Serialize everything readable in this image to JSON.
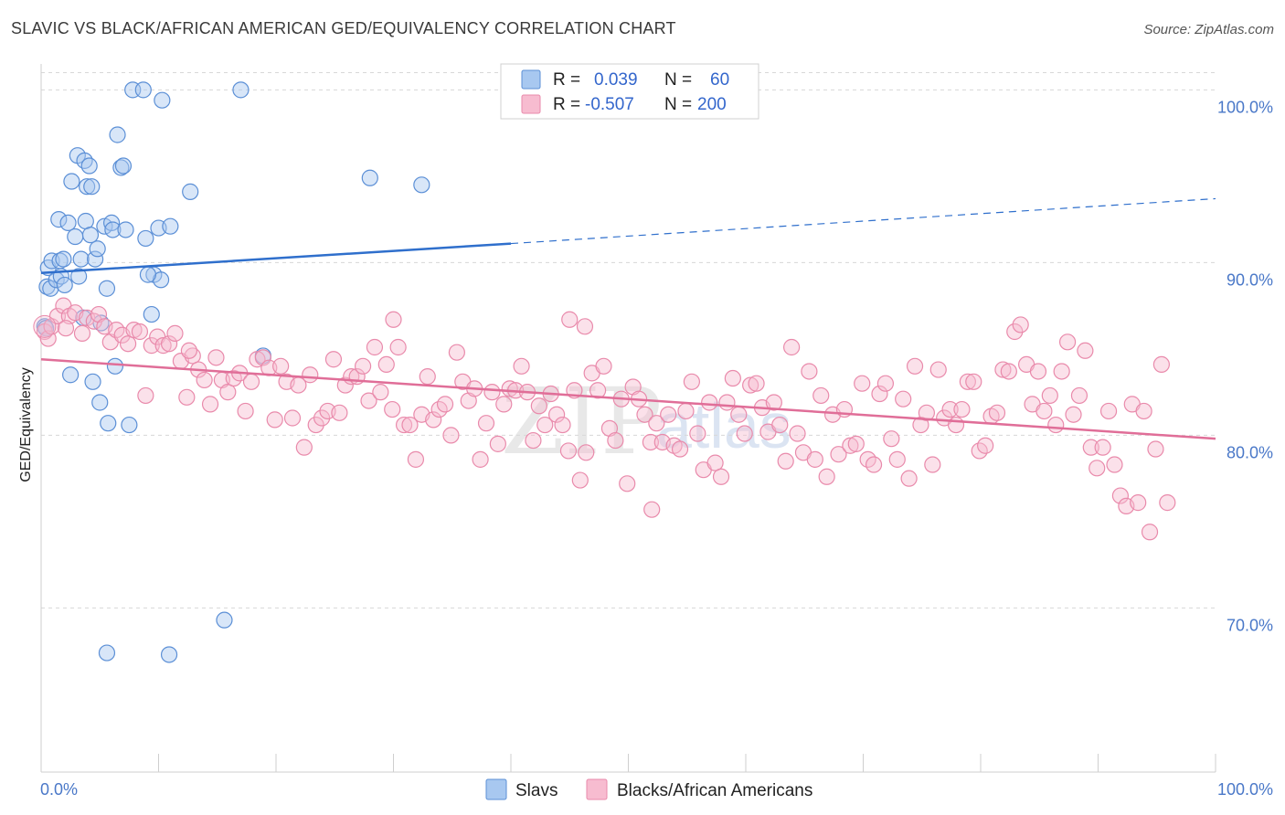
{
  "title": "SLAVIC VS BLACK/AFRICAN AMERICAN GED/EQUIVALENCY CORRELATION CHART",
  "source": "Source: ZipAtlas.com",
  "watermark": "ZIPatlas",
  "colors": {
    "slavs_fill": "#a8c8f0",
    "slavs_stroke": "#5b8fd6",
    "slavs_line": "#2f6fcc",
    "black_fill": "#f7bcd0",
    "black_stroke": "#e98aab",
    "black_line": "#e06e98",
    "tick_label": "#4a78c8",
    "grid": "#d8d8d8"
  },
  "legend": {
    "rows": [
      {
        "r_label": "R =",
        "r_value": "0.039",
        "n_label": "N =",
        "n_value": "60"
      },
      {
        "r_label": "R =",
        "r_value": "-0.507",
        "n_label": "N =",
        "n_value": "200"
      }
    ]
  },
  "chart_data": {
    "type": "scatter",
    "xlabel": "",
    "ylabel": "GED/Equivalency",
    "xlim": [
      0,
      100
    ],
    "ylim": [
      60.5,
      101.5
    ],
    "x_tick_labels": [
      "0.0%",
      "100.0%"
    ],
    "y_ticks": [
      70,
      80,
      90,
      100
    ],
    "y_tick_labels": [
      "70.0%",
      "80.0%",
      "90.0%",
      "100.0%"
    ],
    "grid": "horizontal dashed",
    "legend_position": "top-center",
    "series": [
      {
        "name": "Slavs",
        "trend": {
          "x0": 0,
          "y0": 89.4,
          "x1": 40,
          "y1": 91.1,
          "dashed_to_x": 100,
          "dashed_to_y": 93.7
        },
        "points": [
          [
            0.3,
            86.3
          ],
          [
            0.4,
            86.2
          ],
          [
            0.5,
            88.6
          ],
          [
            0.6,
            89.7
          ],
          [
            0.8,
            88.5
          ],
          [
            0.9,
            90.1
          ],
          [
            1.3,
            89.0
          ],
          [
            1.5,
            92.5
          ],
          [
            1.6,
            90.1
          ],
          [
            1.7,
            89.2
          ],
          [
            1.9,
            90.2
          ],
          [
            2.0,
            88.7
          ],
          [
            2.3,
            92.3
          ],
          [
            2.6,
            94.7
          ],
          [
            2.9,
            91.5
          ],
          [
            3.1,
            96.2
          ],
          [
            3.4,
            90.2
          ],
          [
            3.6,
            86.8
          ],
          [
            3.7,
            95.9
          ],
          [
            3.8,
            92.4
          ],
          [
            3.9,
            94.4
          ],
          [
            4.1,
            95.6
          ],
          [
            4.3,
            94.4
          ],
          [
            4.6,
            90.2
          ],
          [
            4.8,
            90.8
          ],
          [
            5.1,
            86.5
          ],
          [
            5.4,
            92.1
          ],
          [
            5.6,
            88.5
          ],
          [
            6.0,
            92.3
          ],
          [
            6.1,
            91.9
          ],
          [
            6.5,
            97.4
          ],
          [
            6.8,
            95.5
          ],
          [
            7.0,
            95.6
          ],
          [
            7.2,
            91.9
          ],
          [
            7.8,
            100.0
          ],
          [
            8.7,
            100.0
          ],
          [
            8.9,
            91.4
          ],
          [
            9.4,
            87.0
          ],
          [
            9.6,
            89.3
          ],
          [
            10.0,
            92.0
          ],
          [
            10.2,
            89.0
          ],
          [
            10.3,
            99.4
          ],
          [
            11.0,
            92.1
          ],
          [
            12.7,
            94.1
          ],
          [
            17.0,
            100.0
          ],
          [
            18.9,
            84.6
          ],
          [
            28.0,
            94.9
          ],
          [
            32.4,
            94.5
          ],
          [
            2.5,
            83.5
          ],
          [
            4.4,
            83.1
          ],
          [
            5.0,
            81.9
          ],
          [
            5.7,
            80.7
          ],
          [
            6.3,
            84.0
          ],
          [
            7.5,
            80.6
          ],
          [
            5.6,
            67.4
          ],
          [
            10.9,
            67.3
          ],
          [
            15.6,
            69.3
          ],
          [
            9.1,
            89.3
          ],
          [
            3.2,
            89.2
          ],
          [
            4.2,
            91.6
          ]
        ]
      },
      {
        "name": "Blacks/African Americans",
        "trend": {
          "x0": 0,
          "y0": 84.4,
          "x1": 100,
          "y1": 79.8
        },
        "points": [
          [
            0.3,
            86.0
          ],
          [
            0.6,
            85.6
          ],
          [
            0.9,
            86.3
          ],
          [
            1.4,
            86.9
          ],
          [
            1.9,
            87.5
          ],
          [
            2.4,
            86.9
          ],
          [
            2.9,
            87.1
          ],
          [
            3.5,
            85.9
          ],
          [
            3.9,
            86.8
          ],
          [
            4.5,
            86.6
          ],
          [
            4.9,
            87.0
          ],
          [
            5.4,
            86.3
          ],
          [
            5.9,
            85.4
          ],
          [
            6.4,
            86.1
          ],
          [
            6.9,
            85.8
          ],
          [
            7.4,
            85.3
          ],
          [
            7.9,
            86.1
          ],
          [
            8.4,
            86.0
          ],
          [
            8.9,
            82.3
          ],
          [
            9.4,
            85.2
          ],
          [
            9.9,
            85.7
          ],
          [
            10.4,
            85.2
          ],
          [
            10.9,
            85.3
          ],
          [
            11.4,
            85.9
          ],
          [
            11.9,
            84.3
          ],
          [
            12.4,
            82.2
          ],
          [
            12.9,
            84.6
          ],
          [
            13.4,
            83.8
          ],
          [
            13.9,
            83.2
          ],
          [
            14.4,
            81.8
          ],
          [
            14.9,
            84.5
          ],
          [
            15.4,
            83.2
          ],
          [
            15.9,
            82.5
          ],
          [
            16.4,
            83.3
          ],
          [
            16.9,
            83.6
          ],
          [
            17.4,
            81.4
          ],
          [
            17.9,
            83.1
          ],
          [
            18.4,
            84.4
          ],
          [
            18.9,
            84.5
          ],
          [
            19.4,
            83.9
          ],
          [
            19.9,
            80.9
          ],
          [
            20.4,
            84.0
          ],
          [
            20.9,
            83.1
          ],
          [
            21.4,
            81.0
          ],
          [
            21.9,
            82.9
          ],
          [
            22.4,
            79.3
          ],
          [
            22.9,
            83.5
          ],
          [
            23.4,
            80.6
          ],
          [
            23.9,
            81.0
          ],
          [
            24.4,
            81.4
          ],
          [
            24.9,
            84.4
          ],
          [
            25.4,
            81.3
          ],
          [
            25.9,
            82.9
          ],
          [
            26.4,
            83.4
          ],
          [
            26.9,
            83.4
          ],
          [
            27.4,
            84.0
          ],
          [
            27.9,
            82.0
          ],
          [
            28.4,
            85.1
          ],
          [
            28.9,
            82.5
          ],
          [
            29.4,
            84.1
          ],
          [
            29.9,
            81.5
          ],
          [
            30.4,
            85.1
          ],
          [
            30.9,
            80.6
          ],
          [
            31.4,
            80.6
          ],
          [
            31.9,
            78.6
          ],
          [
            32.4,
            81.2
          ],
          [
            32.9,
            83.4
          ],
          [
            33.4,
            80.9
          ],
          [
            33.9,
            81.5
          ],
          [
            34.4,
            81.8
          ],
          [
            34.9,
            80.0
          ],
          [
            35.4,
            84.8
          ],
          [
            35.9,
            83.1
          ],
          [
            36.4,
            82.0
          ],
          [
            36.9,
            82.7
          ],
          [
            37.4,
            78.6
          ],
          [
            37.9,
            80.7
          ],
          [
            38.4,
            82.5
          ],
          [
            38.9,
            79.5
          ],
          [
            39.4,
            81.8
          ],
          [
            39.9,
            82.7
          ],
          [
            40.4,
            82.6
          ],
          [
            40.9,
            84.0
          ],
          [
            41.4,
            82.5
          ],
          [
            41.9,
            79.7
          ],
          [
            42.4,
            81.7
          ],
          [
            42.9,
            80.6
          ],
          [
            43.4,
            82.4
          ],
          [
            43.9,
            81.2
          ],
          [
            44.4,
            80.6
          ],
          [
            44.9,
            79.1
          ],
          [
            45.4,
            82.6
          ],
          [
            45.9,
            77.4
          ],
          [
            46.4,
            79.0
          ],
          [
            46.9,
            83.6
          ],
          [
            47.4,
            82.6
          ],
          [
            47.9,
            84.0
          ],
          [
            48.4,
            80.4
          ],
          [
            48.9,
            79.7
          ],
          [
            49.4,
            82.1
          ],
          [
            49.9,
            77.2
          ],
          [
            50.4,
            82.8
          ],
          [
            50.9,
            82.1
          ],
          [
            51.4,
            81.2
          ],
          [
            51.9,
            79.6
          ],
          [
            52.4,
            80.7
          ],
          [
            52.9,
            79.6
          ],
          [
            53.4,
            81.2
          ],
          [
            53.9,
            79.4
          ],
          [
            54.4,
            79.2
          ],
          [
            54.9,
            81.4
          ],
          [
            55.4,
            83.1
          ],
          [
            55.9,
            80.1
          ],
          [
            56.4,
            78.0
          ],
          [
            56.9,
            81.9
          ],
          [
            57.4,
            78.4
          ],
          [
            57.9,
            77.6
          ],
          [
            58.4,
            81.9
          ],
          [
            58.9,
            83.3
          ],
          [
            59.4,
            81.2
          ],
          [
            59.9,
            80.1
          ],
          [
            60.4,
            82.9
          ],
          [
            60.9,
            83.0
          ],
          [
            61.4,
            81.6
          ],
          [
            61.9,
            80.2
          ],
          [
            62.4,
            81.9
          ],
          [
            62.9,
            80.6
          ],
          [
            63.4,
            78.5
          ],
          [
            63.9,
            85.1
          ],
          [
            64.4,
            80.1
          ],
          [
            64.9,
            79.0
          ],
          [
            65.4,
            83.7
          ],
          [
            65.9,
            78.6
          ],
          [
            66.4,
            82.3
          ],
          [
            66.9,
            77.6
          ],
          [
            67.4,
            81.2
          ],
          [
            67.9,
            78.9
          ],
          [
            68.4,
            81.5
          ],
          [
            68.9,
            79.4
          ],
          [
            69.4,
            79.5
          ],
          [
            69.9,
            83.0
          ],
          [
            70.4,
            78.6
          ],
          [
            70.9,
            78.3
          ],
          [
            71.4,
            82.4
          ],
          [
            71.9,
            83.0
          ],
          [
            72.4,
            79.8
          ],
          [
            72.9,
            78.6
          ],
          [
            73.4,
            82.1
          ],
          [
            73.9,
            77.5
          ],
          [
            74.4,
            84.0
          ],
          [
            74.9,
            80.6
          ],
          [
            75.4,
            81.3
          ],
          [
            75.9,
            78.3
          ],
          [
            76.4,
            83.8
          ],
          [
            76.9,
            81.0
          ],
          [
            77.4,
            81.5
          ],
          [
            77.9,
            80.6
          ],
          [
            78.4,
            81.5
          ],
          [
            78.9,
            83.1
          ],
          [
            79.4,
            83.1
          ],
          [
            79.9,
            79.1
          ],
          [
            80.4,
            79.4
          ],
          [
            80.9,
            81.1
          ],
          [
            81.4,
            81.3
          ],
          [
            81.9,
            83.8
          ],
          [
            82.4,
            83.7
          ],
          [
            82.9,
            86.0
          ],
          [
            83.4,
            86.4
          ],
          [
            83.9,
            84.1
          ],
          [
            84.4,
            81.8
          ],
          [
            84.9,
            83.7
          ],
          [
            85.4,
            81.4
          ],
          [
            85.9,
            82.3
          ],
          [
            86.4,
            80.6
          ],
          [
            86.9,
            83.7
          ],
          [
            87.4,
            85.4
          ],
          [
            87.9,
            81.2
          ],
          [
            88.4,
            82.3
          ],
          [
            88.9,
            84.9
          ],
          [
            89.4,
            79.3
          ],
          [
            89.9,
            78.1
          ],
          [
            90.4,
            79.3
          ],
          [
            90.9,
            81.4
          ],
          [
            91.4,
            78.3
          ],
          [
            91.9,
            76.5
          ],
          [
            92.4,
            75.9
          ],
          [
            92.9,
            81.8
          ],
          [
            93.4,
            76.1
          ],
          [
            93.9,
            81.4
          ],
          [
            94.4,
            74.4
          ],
          [
            94.9,
            79.2
          ],
          [
            95.4,
            84.1
          ],
          [
            95.9,
            76.1
          ],
          [
            2.1,
            86.2
          ],
          [
            12.6,
            84.9
          ],
          [
            46.3,
            86.3
          ],
          [
            45.0,
            86.7
          ],
          [
            30.0,
            86.7
          ],
          [
            52.0,
            75.7
          ]
        ]
      }
    ]
  }
}
